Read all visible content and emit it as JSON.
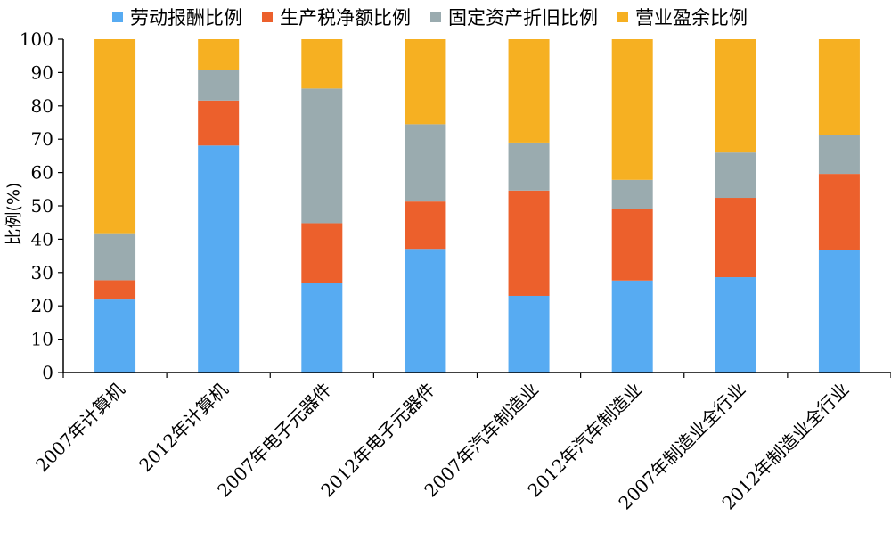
{
  "chart_data": {
    "type": "bar",
    "stacked": true,
    "title": "",
    "xlabel": "",
    "ylabel": "比例(%)",
    "ylim": [
      0,
      100
    ],
    "yticks": [
      0,
      10,
      20,
      30,
      40,
      50,
      60,
      70,
      80,
      90,
      100
    ],
    "grid": false,
    "legend_position": "top",
    "categories": [
      "2007年计算机",
      "2012年计算机",
      "2007年电子元器件",
      "2012年电子元器件",
      "2007年汽车制造业",
      "2012年汽车制造业",
      "2007年制造业全行业",
      "2012年制造业全行业"
    ],
    "series": [
      {
        "name": "劳动报酬比例",
        "color": "#57ABF2",
        "values": [
          21.9,
          68.1,
          26.9,
          37.1,
          23.0,
          27.6,
          28.6,
          36.8
        ]
      },
      {
        "name": "生产税净额比例",
        "color": "#EC602C",
        "values": [
          5.8,
          13.5,
          17.9,
          14.2,
          31.6,
          21.4,
          23.8,
          22.8
        ]
      },
      {
        "name": "固定资产折旧比例",
        "color": "#9AABAF",
        "values": [
          14.1,
          9.2,
          40.4,
          23.2,
          14.4,
          8.8,
          13.6,
          11.6
        ]
      },
      {
        "name": "营业盈余比例",
        "color": "#F6B022",
        "values": [
          58.2,
          9.2,
          14.8,
          25.5,
          31.0,
          42.2,
          34.0,
          28.8
        ]
      }
    ]
  }
}
